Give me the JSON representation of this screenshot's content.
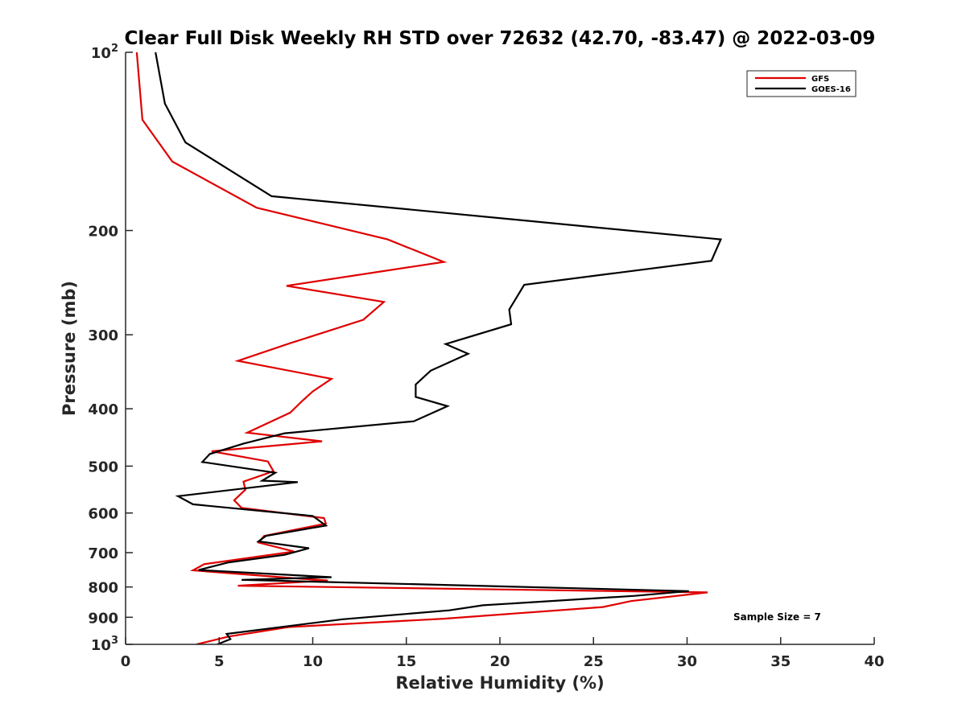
{
  "chart_data": {
    "type": "line",
    "title": "Clear Full Disk Weekly RH STD over 72632 (42.70, -83.47) @ 2022-03-09",
    "xlabel": "Relative Humidity (%)",
    "ylabel": "Pressure (mb)",
    "xlim": [
      0,
      40
    ],
    "ylim": [
      100,
      1000
    ],
    "yscale": "log",
    "y_reversed": true,
    "x_ticks": [
      0,
      5,
      10,
      15,
      20,
      25,
      30,
      35,
      40
    ],
    "x_tick_labels": [
      "0",
      "5",
      "10",
      "15",
      "20",
      "25",
      "30",
      "35",
      "40"
    ],
    "y_ticks": [
      100,
      200,
      300,
      400,
      500,
      600,
      700,
      800,
      900,
      1000
    ],
    "y_tick_labels": [
      {
        "base": "10",
        "exp": "2"
      },
      {
        "base": "200",
        "exp": ""
      },
      {
        "base": "300",
        "exp": ""
      },
      {
        "base": "400",
        "exp": ""
      },
      {
        "base": "500",
        "exp": ""
      },
      {
        "base": "600",
        "exp": ""
      },
      {
        "base": "700",
        "exp": ""
      },
      {
        "base": "800",
        "exp": ""
      },
      {
        "base": "900",
        "exp": ""
      },
      {
        "base": "10",
        "exp": "3"
      }
    ],
    "grid": false,
    "legend_position": "top-right",
    "annotation": "Sample Size = 7",
    "series": [
      {
        "name": "GFS",
        "color": "#e00000",
        "x": [
          0.6,
          0.9,
          2.5,
          7.0,
          14.0,
          17.0,
          8.6,
          13.8,
          12.7,
          8.8,
          6.0,
          11.0,
          10.0,
          9.4,
          8.8,
          6.5,
          10.5,
          4.6,
          7.6,
          7.9,
          6.3,
          6.4,
          5.8,
          6.2,
          10.6,
          10.7,
          7.4,
          7.1,
          9.0,
          4.2,
          3.6,
          9.2,
          10.8,
          6.0,
          31.1,
          27.0,
          25.5,
          17.0,
          8.7,
          5.5,
          3.8
        ],
        "y": [
          100,
          130,
          153,
          183,
          207,
          226,
          248,
          264,
          283,
          310,
          332,
          356,
          374,
          389,
          406,
          439,
          454,
          472,
          491,
          510,
          531,
          548,
          571,
          588,
          612,
          625,
          656,
          673,
          697,
          732,
          750,
          774,
          780,
          796,
          817,
          845,
          865,
          905,
          935,
          970,
          1000
        ]
      },
      {
        "name": "GOES-16",
        "color": "#000000",
        "x": [
          1.6,
          2.1,
          3.2,
          7.8,
          31.8,
          31.3,
          21.3,
          20.5,
          20.6,
          17.1,
          18.3,
          16.3,
          15.5,
          15.5,
          17.2,
          15.4,
          8.5,
          6.3,
          4.5,
          4.1,
          8.0,
          7.3,
          9.2,
          2.8,
          3.6,
          10.0,
          10.7,
          7.5,
          7.1,
          9.8,
          8.5,
          5.5,
          3.9,
          11.0,
          6.2,
          30.1,
          27.2,
          19.1,
          17.3,
          11.6,
          5.4,
          5.6,
          4.9
        ],
        "y": [
          100,
          122,
          142,
          175,
          207,
          225,
          247,
          272,
          288,
          311,
          323,
          345,
          364,
          382,
          396,
          420,
          440,
          458,
          477,
          492,
          513,
          529,
          532,
          562,
          580,
          607,
          630,
          656,
          670,
          688,
          706,
          727,
          749,
          770,
          778,
          813,
          828,
          859,
          876,
          907,
          960,
          980,
          1000
        ]
      }
    ]
  }
}
